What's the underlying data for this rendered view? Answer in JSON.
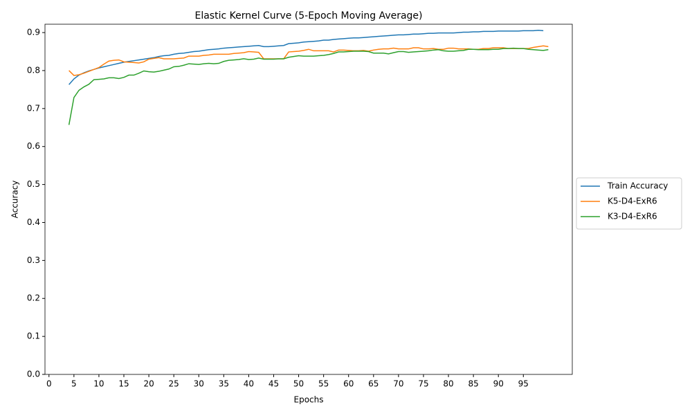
{
  "chart_data": {
    "type": "line",
    "title": "Elastic Kernel Curve (5-Epoch Moving Average)",
    "x_label": "Epochs",
    "y_label": "Accuracy",
    "x": [
      4,
      5,
      6,
      7,
      8,
      9,
      10,
      11,
      12,
      13,
      14,
      15,
      16,
      17,
      18,
      19,
      20,
      21,
      22,
      23,
      24,
      25,
      26,
      27,
      28,
      29,
      30,
      31,
      32,
      33,
      34,
      35,
      36,
      37,
      38,
      39,
      40,
      41,
      42,
      43,
      44,
      45,
      46,
      47,
      48,
      49,
      50,
      51,
      52,
      53,
      54,
      55,
      56,
      57,
      58,
      59,
      60,
      61,
      62,
      63,
      64,
      65,
      66,
      67,
      68,
      69,
      70,
      71,
      72,
      73,
      74,
      75,
      76,
      77,
      78,
      79,
      80,
      81,
      82,
      83,
      84,
      85,
      86,
      87,
      88,
      89,
      90,
      91,
      92,
      93,
      94,
      95,
      96,
      97,
      98,
      99,
      100
    ],
    "series": [
      {
        "name": "Train Accuracy",
        "color": "#1f77b4",
        "values": [
          0.763,
          0.778,
          0.788,
          0.794,
          0.799,
          0.803,
          0.807,
          0.81,
          0.813,
          0.816,
          0.819,
          0.822,
          0.824,
          0.826,
          0.828,
          0.83,
          0.832,
          0.834,
          0.837,
          0.839,
          0.84,
          0.843,
          0.845,
          0.846,
          0.848,
          0.85,
          0.851,
          0.853,
          0.855,
          0.856,
          0.857,
          0.859,
          0.86,
          0.861,
          0.862,
          0.863,
          0.864,
          0.865,
          0.866,
          0.863,
          0.863,
          0.864,
          0.865,
          0.866,
          0.871,
          0.872,
          0.873,
          0.875,
          0.876,
          0.877,
          0.878,
          0.88,
          0.88,
          0.882,
          0.883,
          0.884,
          0.885,
          0.886,
          0.886,
          0.887,
          0.888,
          0.889,
          0.89,
          0.891,
          0.892,
          0.893,
          0.894,
          0.894,
          0.895,
          0.896,
          0.896,
          0.897,
          0.898,
          0.898,
          0.899,
          0.899,
          0.899,
          0.899,
          0.9,
          0.901,
          0.901,
          0.902,
          0.902,
          0.903,
          0.903,
          0.903,
          0.904,
          0.904,
          0.904,
          0.904,
          0.904,
          0.905,
          0.905,
          0.905,
          0.906,
          0.905,
          null
        ]
      },
      {
        "name": "K5-D4-ExR6",
        "color": "#ff7f0e",
        "values": [
          0.8,
          0.787,
          0.789,
          0.793,
          0.798,
          0.803,
          0.808,
          0.817,
          0.825,
          0.827,
          0.828,
          0.823,
          0.822,
          0.821,
          0.82,
          0.823,
          0.83,
          0.832,
          0.834,
          0.831,
          0.831,
          0.831,
          0.832,
          0.833,
          0.838,
          0.838,
          0.838,
          0.84,
          0.841,
          0.843,
          0.843,
          0.843,
          0.843,
          0.845,
          0.846,
          0.847,
          0.85,
          0.849,
          0.848,
          0.831,
          0.831,
          0.831,
          0.831,
          0.831,
          0.849,
          0.85,
          0.851,
          0.853,
          0.856,
          0.852,
          0.852,
          0.852,
          0.852,
          0.849,
          0.854,
          0.854,
          0.853,
          0.852,
          0.852,
          0.853,
          0.851,
          0.854,
          0.856,
          0.857,
          0.857,
          0.859,
          0.857,
          0.857,
          0.857,
          0.86,
          0.86,
          0.857,
          0.857,
          0.858,
          0.856,
          0.856,
          0.859,
          0.859,
          0.857,
          0.857,
          0.857,
          0.856,
          0.856,
          0.858,
          0.858,
          0.86,
          0.86,
          0.86,
          0.858,
          0.858,
          0.858,
          0.858,
          0.858,
          0.861,
          0.863,
          0.865,
          0.863
        ]
      },
      {
        "name": "K3-D4-ExR6",
        "color": "#2ca02c",
        "values": [
          0.657,
          0.729,
          0.748,
          0.757,
          0.764,
          0.776,
          0.777,
          0.778,
          0.781,
          0.781,
          0.779,
          0.782,
          0.788,
          0.788,
          0.793,
          0.799,
          0.797,
          0.796,
          0.798,
          0.801,
          0.804,
          0.81,
          0.811,
          0.814,
          0.818,
          0.817,
          0.816,
          0.818,
          0.819,
          0.818,
          0.819,
          0.824,
          0.827,
          0.828,
          0.829,
          0.831,
          0.829,
          0.83,
          0.833,
          0.83,
          0.83,
          0.83,
          0.831,
          0.831,
          0.835,
          0.837,
          0.839,
          0.838,
          0.838,
          0.838,
          0.839,
          0.84,
          0.842,
          0.845,
          0.849,
          0.849,
          0.85,
          0.851,
          0.851,
          0.851,
          0.85,
          0.846,
          0.846,
          0.846,
          0.844,
          0.847,
          0.85,
          0.85,
          0.848,
          0.849,
          0.85,
          0.851,
          0.852,
          0.854,
          0.855,
          0.852,
          0.851,
          0.851,
          0.852,
          0.853,
          0.856,
          0.856,
          0.855,
          0.855,
          0.855,
          0.856,
          0.856,
          0.858,
          0.858,
          0.859,
          0.858,
          0.858,
          0.856,
          0.855,
          0.854,
          0.853,
          0.855
        ]
      }
    ],
    "xlim": [
      -0.8,
      104.8
    ],
    "xticks": [
      0,
      5,
      10,
      15,
      20,
      25,
      30,
      35,
      40,
      45,
      50,
      55,
      60,
      65,
      70,
      75,
      80,
      85,
      90,
      95
    ],
    "ylim": [
      0,
      0.922
    ],
    "yticks": [
      {
        "value": 0,
        "label": "0.0"
      },
      0.1,
      0.2,
      0.3,
      0.4,
      0.5,
      0.6,
      0.7,
      0.8,
      0.9
    ],
    "legend": "outside-right"
  }
}
